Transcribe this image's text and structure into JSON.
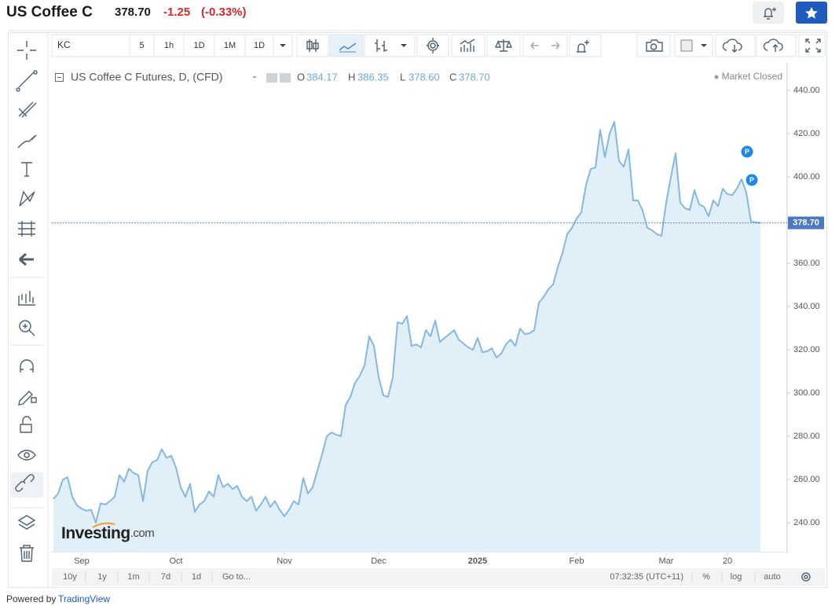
{
  "header": {
    "title": "US Coffee C",
    "price": "378.70",
    "change": "-1.25",
    "change_pct": "(-0.33%)"
  },
  "toolbar": {
    "symbol": "KC",
    "intervals": [
      "5",
      "1h",
      "1D",
      "1M",
      "1D"
    ]
  },
  "chart_data": {
    "type": "area",
    "title": "US Coffee C Futures, D, (CFD)",
    "legend": {
      "open_label": "O",
      "open": "384.17",
      "high_label": "H",
      "high": "386.35",
      "low_label": "L",
      "low": "378.60",
      "close_label": "C",
      "close": "378.70"
    },
    "status": "Market Closed",
    "watermark": [
      "Investing",
      ".com"
    ],
    "events": [
      "P",
      "P"
    ],
    "color": "#86b8df",
    "fill_color": "#e1eff9",
    "categories": [
      null,
      null,
      null,
      null,
      null,
      null,
      "Sep",
      null,
      null,
      null,
      null,
      null,
      null,
      null,
      null,
      null,
      null,
      null,
      null,
      null,
      null,
      null,
      null,
      null,
      null,
      null,
      "Oct",
      null,
      null,
      null,
      null,
      null,
      null,
      null,
      null,
      null,
      null,
      null,
      null,
      null,
      null,
      null,
      null,
      null,
      null,
      null,
      null,
      null,
      null,
      "Nov",
      null,
      null,
      null,
      null,
      null,
      null,
      null,
      null,
      null,
      null,
      null,
      null,
      null,
      null,
      null,
      null,
      null,
      null,
      null,
      "Dec",
      null,
      null,
      null,
      null,
      null,
      null,
      null,
      null,
      null,
      null,
      null,
      null,
      null,
      null,
      null,
      null,
      null,
      null,
      null,
      null,
      "2025",
      null,
      null,
      null,
      null,
      null,
      null,
      null,
      null,
      null,
      null,
      null,
      null,
      null,
      null,
      null,
      null,
      null,
      null,
      null,
      null,
      "Feb",
      null,
      null,
      null,
      null,
      null,
      null,
      null,
      null,
      null,
      null,
      null,
      null,
      null,
      null,
      null,
      null,
      null,
      null,
      "Mar",
      null,
      null,
      null,
      null,
      null,
      null,
      null,
      null,
      null,
      null,
      null,
      null,
      "20",
      null,
      null,
      null,
      null,
      null,
      null,
      null
    ],
    "values": [
      251,
      253.5,
      260,
      261,
      252,
      248,
      246.5,
      245.5,
      246,
      240,
      249,
      248.4,
      250,
      252,
      262,
      259,
      265,
      263,
      262,
      250,
      264,
      268,
      269,
      274,
      270,
      271,
      265.5,
      256.4,
      252,
      258,
      245,
      248.4,
      250,
      254.5,
      252,
      262,
      256.4,
      258,
      255.6,
      257,
      252,
      250,
      252,
      245.5,
      248.4,
      252,
      247.3,
      250,
      246,
      243,
      246,
      250,
      248.4,
      260.7,
      253.5,
      256.4,
      264,
      271.6,
      280,
      281.8,
      280.7,
      280,
      294.5,
      298.2,
      304.7,
      308,
      312.7,
      326.2,
      321.8,
      307.3,
      298.9,
      298.2,
      307.3,
      332.7,
      332,
      335.6,
      321.8,
      322.5,
      321.1,
      329.1,
      326.2,
      333.5,
      323.6,
      325.5,
      327.3,
      329.1,
      324.7,
      322.9,
      321.1,
      320,
      325.5,
      318.9,
      319.3,
      320.7,
      316.4,
      318.2,
      322.5,
      324.7,
      321.8,
      329.8,
      327.3,
      327.6,
      329.1,
      341.8,
      344.4,
      348,
      350.2,
      358.2,
      364.7,
      373.5,
      376.4,
      380.7,
      383.6,
      396.4,
      403.6,
      404.4,
      421.8,
      409.1,
      420,
      425.5,
      407.3,
      404.7,
      412.7,
      389.1,
      389.1,
      384.4,
      376.4,
      375.3,
      373.5,
      372.7,
      388,
      400,
      410.9,
      388,
      385.5,
      384.7,
      393.8,
      387.3,
      386.2,
      381.8,
      389.1,
      386.5,
      394.5,
      392,
      391.6,
      394.5,
      398.9,
      392.7,
      379.3,
      378.9,
      378.7
    ],
    "last_value": {
      "value": 378.7,
      "label": "378.70"
    },
    "ylim": [
      226.2,
      452
    ],
    "yticks": [
      {
        "value": 240,
        "label": "240.00"
      },
      {
        "value": 260,
        "label": "260.00"
      },
      {
        "value": 280,
        "label": "280.00"
      },
      {
        "value": 300,
        "label": "300.00"
      },
      {
        "value": 320,
        "label": "320.00"
      },
      {
        "value": 340,
        "label": "340.00"
      },
      {
        "value": 360,
        "label": "360.00"
      },
      {
        "value": 380,
        "label": "380.00"
      },
      {
        "value": 400,
        "label": "400.00"
      },
      {
        "value": 420,
        "label": "420.00"
      },
      {
        "value": 440,
        "label": "440.00"
      }
    ]
  },
  "bottom_bar": {
    "ranges": [
      "10y",
      "1y",
      "1m",
      "7d",
      "1d"
    ],
    "goto": "Go to...",
    "time": "07:32:35 (UTC+11)",
    "options": [
      "%",
      "log",
      "auto"
    ]
  },
  "footer": {
    "prefix": "Powered by",
    "link": "TradingView"
  }
}
